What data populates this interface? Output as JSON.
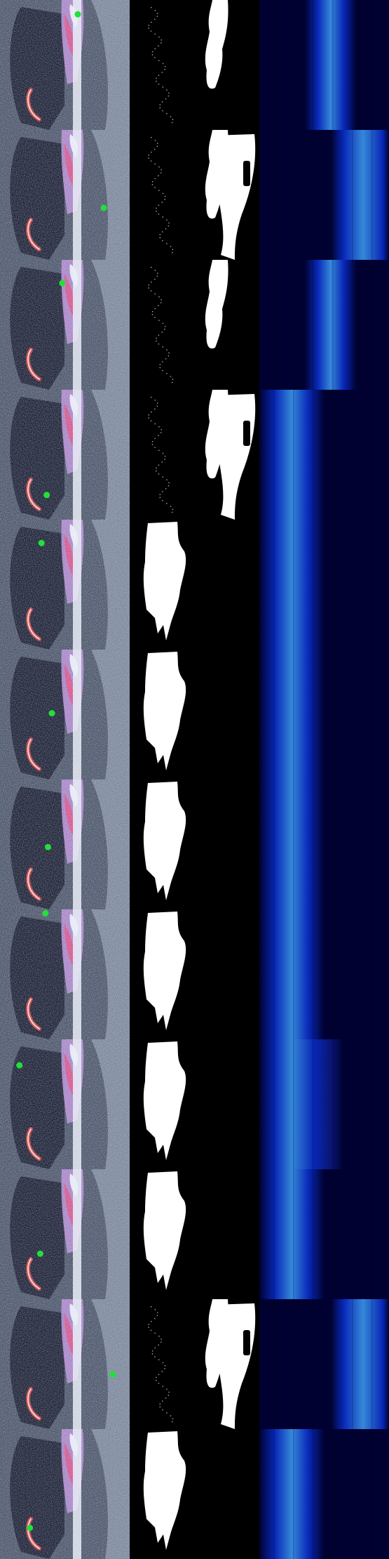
{
  "grid": {
    "rows": 12,
    "columns": [
      "input-image",
      "segmentation-mask",
      "heatmap"
    ]
  },
  "colors": {
    "background": "#000000",
    "mask": "#ffffff",
    "point": "#22e03a",
    "heat_dark": "#00023a",
    "heat_mid": "#0a2fd8",
    "heat_bright": "#3fa0ff"
  },
  "rows": [
    {
      "point": [
        0.6,
        0.11
      ],
      "mask": "right",
      "mask_hole": false,
      "heat": "center-right"
    },
    {
      "point": [
        0.8,
        0.6
      ],
      "mask": "right",
      "mask_hole": true,
      "heat": "far-right"
    },
    {
      "point": [
        0.48,
        0.18
      ],
      "mask": "right",
      "mask_hole": false,
      "heat": "center-right"
    },
    {
      "point": [
        0.36,
        0.81
      ],
      "mask": "right",
      "mask_hole": true,
      "heat": "left"
    },
    {
      "point": [
        0.32,
        0.18
      ],
      "mask": "left",
      "mask_hole": false,
      "heat": "left"
    },
    {
      "point": [
        0.4,
        0.49
      ],
      "mask": "left",
      "mask_hole": false,
      "heat": "left"
    },
    {
      "point": [
        0.37,
        0.52
      ],
      "mask": "left",
      "mask_hole": false,
      "heat": "left"
    },
    {
      "point": [
        0.35,
        0.03
      ],
      "mask": "left",
      "mask_hole": false,
      "heat": "left"
    },
    {
      "point": [
        0.15,
        0.2
      ],
      "mask": "left",
      "mask_hole": false,
      "heat": "left-center"
    },
    {
      "point": [
        0.31,
        0.65
      ],
      "mask": "left",
      "mask_hole": false,
      "heat": "left"
    },
    {
      "point": [
        0.87,
        0.58
      ],
      "mask": "right",
      "mask_hole": true,
      "heat": "far-right"
    },
    {
      "point": [
        0.23,
        0.76
      ],
      "mask": "left",
      "mask_hole": false,
      "heat": "left"
    }
  ]
}
